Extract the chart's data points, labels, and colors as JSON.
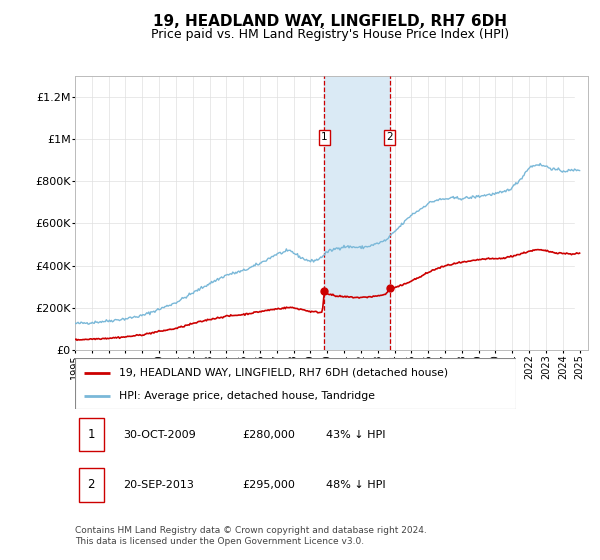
{
  "title": "19, HEADLAND WAY, LINGFIELD, RH7 6DH",
  "subtitle": "Price paid vs. HM Land Registry's House Price Index (HPI)",
  "ylim": [
    0,
    1300000
  ],
  "xlim_start": 1995.0,
  "xlim_end": 2025.5,
  "yticks": [
    0,
    200000,
    400000,
    600000,
    800000,
    1000000,
    1200000
  ],
  "ytick_labels": [
    "£0",
    "£200K",
    "£400K",
    "£600K",
    "£800K",
    "£1M",
    "£1.2M"
  ],
  "transaction1": {
    "date_num": 2009.83,
    "price": 280000,
    "label": "1",
    "date_str": "30-OCT-2009",
    "pct": "43% ↓ HPI"
  },
  "transaction2": {
    "date_num": 2013.72,
    "price": 295000,
    "label": "2",
    "date_str": "20-SEP-2013",
    "pct": "48% ↓ HPI"
  },
  "hpi_color": "#7ab8d8",
  "price_color": "#cc0000",
  "shaded_color": "#daeaf5",
  "dashed_color": "#cc0000",
  "title_fontsize": 11,
  "subtitle_fontsize": 9,
  "footnote": "Contains HM Land Registry data © Crown copyright and database right 2024.\nThis data is licensed under the Open Government Licence v3.0."
}
